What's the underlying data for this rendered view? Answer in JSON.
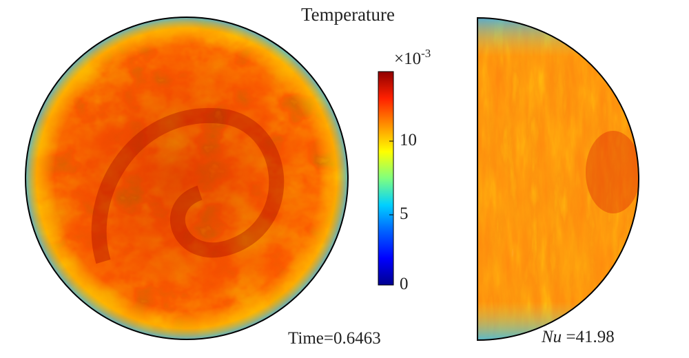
{
  "figure": {
    "colorbar_title": "Temperature",
    "colorbar_exponent_base": "×10",
    "colorbar_exponent_power": "-3",
    "colorbar_ticks": [
      "0",
      "5",
      "10"
    ],
    "time_label": "Time=0.6463",
    "nusselt_symbol": "Nu",
    "nusselt_value": "=41.98"
  },
  "colormap": [
    "#00008f",
    "#0050ff",
    "#00c8ff",
    "#7fff7f",
    "#ffff00",
    "#ff9f00",
    "#ff3000",
    "#8f0000"
  ]
}
